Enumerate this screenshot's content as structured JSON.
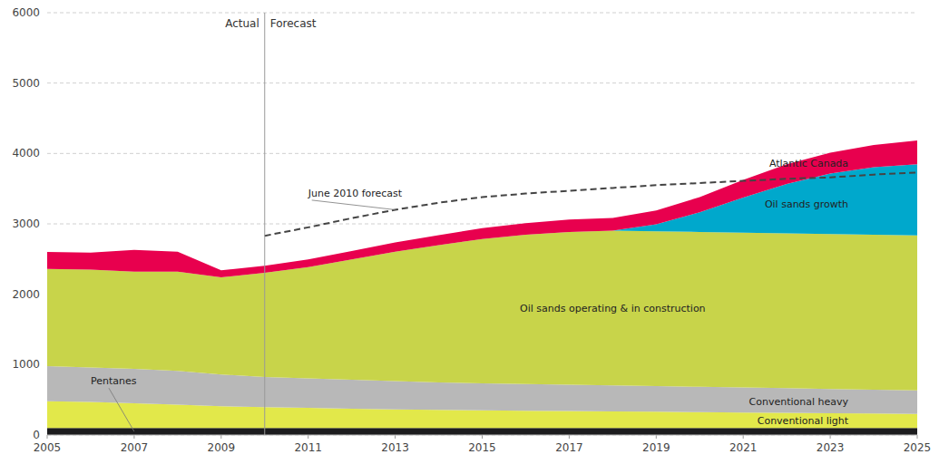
{
  "chart_data": {
    "type": "area",
    "stacked": true,
    "x": [
      2005,
      2006,
      2007,
      2008,
      2009,
      2010,
      2011,
      2012,
      2013,
      2014,
      2015,
      2016,
      2017,
      2018,
      2019,
      2020,
      2021,
      2022,
      2023,
      2024,
      2025
    ],
    "series": [
      {
        "name": "Pentanes",
        "color": "#1c1c1e",
        "values": [
          100,
          100,
          100,
          100,
          100,
          100,
          100,
          100,
          100,
          100,
          100,
          100,
          100,
          100,
          100,
          100,
          100,
          100,
          100,
          100,
          100
        ]
      },
      {
        "name": "Conventional light",
        "color": "#e2e84a",
        "values": [
          380,
          370,
          350,
          330,
          310,
          295,
          285,
          275,
          265,
          258,
          250,
          245,
          240,
          235,
          230,
          225,
          220,
          215,
          210,
          205,
          200
        ]
      },
      {
        "name": "Conventional heavy",
        "color": "#b8b8b8",
        "values": [
          500,
          490,
          490,
          480,
          450,
          430,
          420,
          410,
          400,
          390,
          385,
          380,
          375,
          370,
          365,
          360,
          355,
          350,
          345,
          340,
          335
        ]
      },
      {
        "name": "Oil sands operating & in construction",
        "color": "#c8d44a",
        "values": [
          1380,
          1390,
          1380,
          1410,
          1380,
          1480,
          1580,
          1710,
          1840,
          1950,
          2050,
          2120,
          2170,
          2200,
          2200,
          2200,
          2200,
          2200,
          2200,
          2200,
          2200
        ]
      },
      {
        "name": "Oil sands growth",
        "color": "#00a8cc",
        "values": [
          0,
          0,
          0,
          0,
          0,
          0,
          0,
          0,
          0,
          0,
          0,
          0,
          0,
          0,
          100,
          280,
          500,
          700,
          860,
          960,
          1010
        ]
      },
      {
        "name": "Atlantic Canada",
        "color": "#e8004e",
        "values": [
          240,
          240,
          310,
          285,
          100,
          100,
          110,
          120,
          130,
          140,
          155,
          165,
          175,
          180,
          195,
          215,
          250,
          280,
          295,
          315,
          340
        ]
      },
      {
        "name": "June 2010 forecast",
        "type": "line",
        "line_style": "dashed",
        "color": "#444444",
        "values": [
          null,
          null,
          null,
          null,
          null,
          2830,
          2950,
          3080,
          3200,
          3300,
          3380,
          3430,
          3470,
          3510,
          3550,
          3580,
          3610,
          3640,
          3660,
          3700,
          3730
        ]
      }
    ],
    "divider": 2010,
    "annotations": [
      "Actual",
      "Forecast"
    ],
    "xlim": [
      2005,
      2025
    ],
    "ylim": [
      0,
      6000
    ],
    "xticks": [
      2005,
      2007,
      2009,
      2011,
      2013,
      2015,
      2017,
      2019,
      2021,
      2023,
      2025
    ],
    "yticks": [
      0,
      1000,
      2000,
      3000,
      4000,
      5000,
      6000
    ],
    "grid": true
  }
}
